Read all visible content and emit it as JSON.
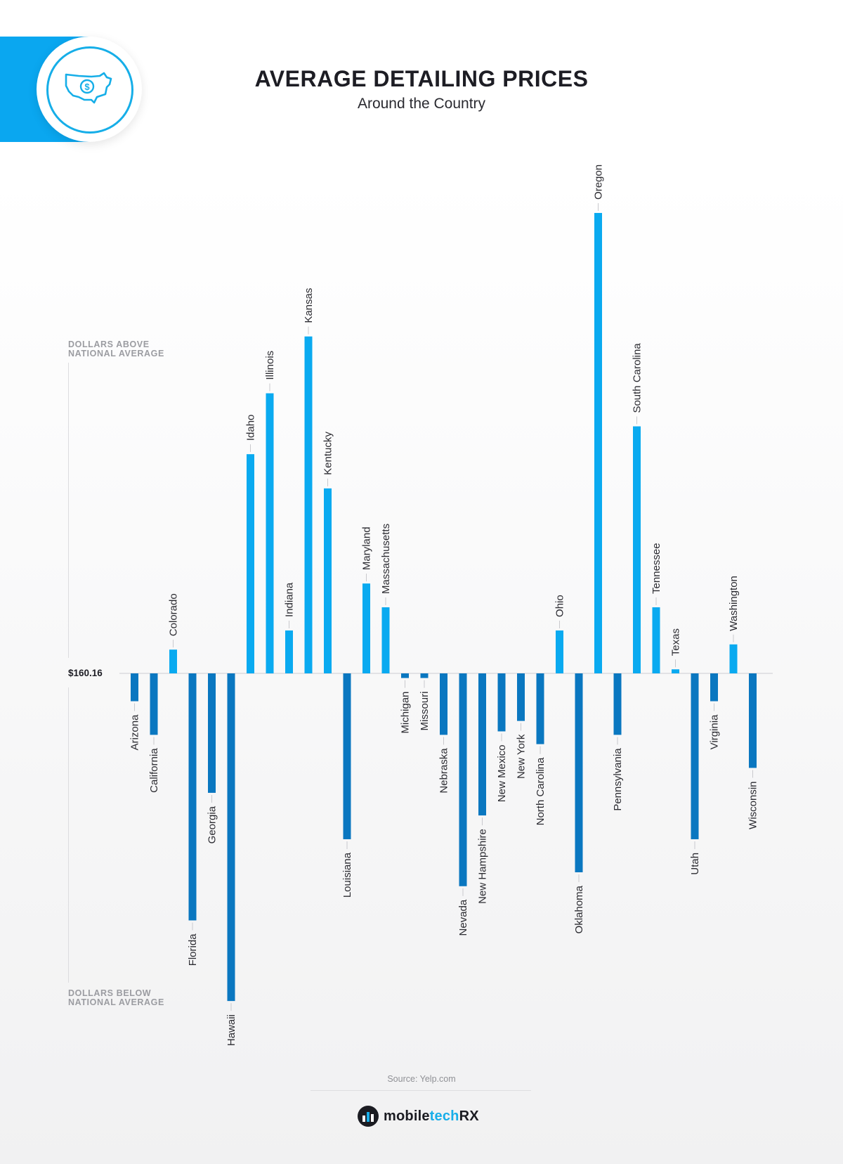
{
  "header": {
    "title": "AVERAGE DETAILING PRICES",
    "subtitle": "Around the Country",
    "badge_icon": "usa-map-dollar-icon"
  },
  "axis_notes": {
    "above": [
      "DOLLARS ABOVE",
      "NATIONAL AVERAGE"
    ],
    "below": [
      "DOLLARS BELOW",
      "NATIONAL AVERAGE"
    ],
    "baseline": "$160.16"
  },
  "colors": {
    "above": "#0aaaf0",
    "below": "#0a77c0",
    "accent": "#0aa7f0"
  },
  "chart_data": {
    "type": "bar",
    "baseline_value": 160.16,
    "value_unit": "dollars relative to national average (estimated)",
    "ylim": [
      -56.5,
      80
    ],
    "categories": [
      "Arizona",
      "California",
      "Colorado",
      "Florida",
      "Georgia",
      "Hawaii",
      "Idaho",
      "Illinois",
      "Indiana",
      "Kansas",
      "Kentucky",
      "Louisiana",
      "Maryland",
      "Massachusetts",
      "Michigan",
      "Missouri",
      "Nebraska",
      "Nevada",
      "New Hampshire",
      "New Mexico",
      "New York",
      "North Carolina",
      "Ohio",
      "Oklahoma",
      "Oregon",
      "Pennsylvania",
      "South Carolina",
      "Tennessee",
      "Texas",
      "Utah",
      "Virginia",
      "Washington",
      "Wisconsin"
    ],
    "values": [
      -4.8,
      -10.6,
      4.1,
      -42.6,
      -20.6,
      -56.5,
      37.8,
      48.3,
      7.4,
      58.1,
      31.9,
      -28.6,
      15.5,
      11.4,
      -0.8,
      -0.8,
      -10.6,
      -36.7,
      -24.5,
      -10,
      -8.2,
      -12.2,
      7.4,
      -34.3,
      79.4,
      -10.6,
      42.6,
      11.4,
      0.7,
      -28.6,
      -4.8,
      5,
      -16.3
    ]
  },
  "footer": {
    "source": "Source: Yelp.com",
    "brand": "mobile",
    "brand_accent": "tech",
    "brand_suffix": "RX"
  }
}
